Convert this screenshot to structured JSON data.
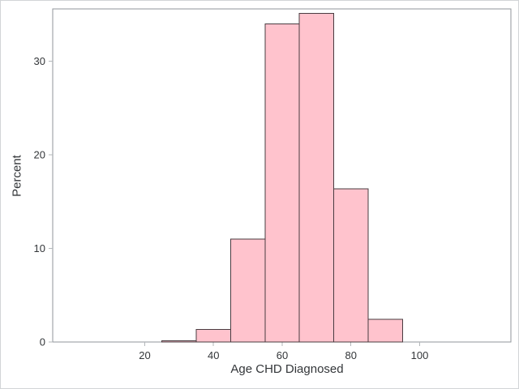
{
  "figure": {
    "background": "#ffffff",
    "frame_border_color": "#d2d5d7"
  },
  "chart_data": {
    "type": "histogram",
    "title": "",
    "xlabel": "Age CHD Diagnosed",
    "ylabel": "Percent",
    "x_ticks": [
      20,
      40,
      60,
      80,
      100
    ],
    "y_ticks": [
      0,
      10,
      20,
      30
    ],
    "xlim": [
      -6.78,
      126.55
    ],
    "ylim": [
      0,
      35.58
    ],
    "grid": false,
    "legend": false,
    "bin_width": 10,
    "bins": [
      {
        "x0": 25,
        "x1": 35,
        "percent": 0.13
      },
      {
        "x0": 35,
        "x1": 45,
        "percent": 1.36
      },
      {
        "x0": 45,
        "x1": 55,
        "percent": 11.0
      },
      {
        "x0": 55,
        "x1": 65,
        "percent": 34.0
      },
      {
        "x0": 65,
        "x1": 75,
        "percent": 35.1
      },
      {
        "x0": 75,
        "x1": 85,
        "percent": 16.35
      },
      {
        "x0": 85,
        "x1": 95,
        "percent": 2.42
      }
    ],
    "colors": {
      "bar_fill": "#ffc3cd",
      "bar_stroke": "#4a3c41",
      "plot_border": "#90969b",
      "tick_mark": "#b3b7ba",
      "text": "#333639"
    }
  }
}
